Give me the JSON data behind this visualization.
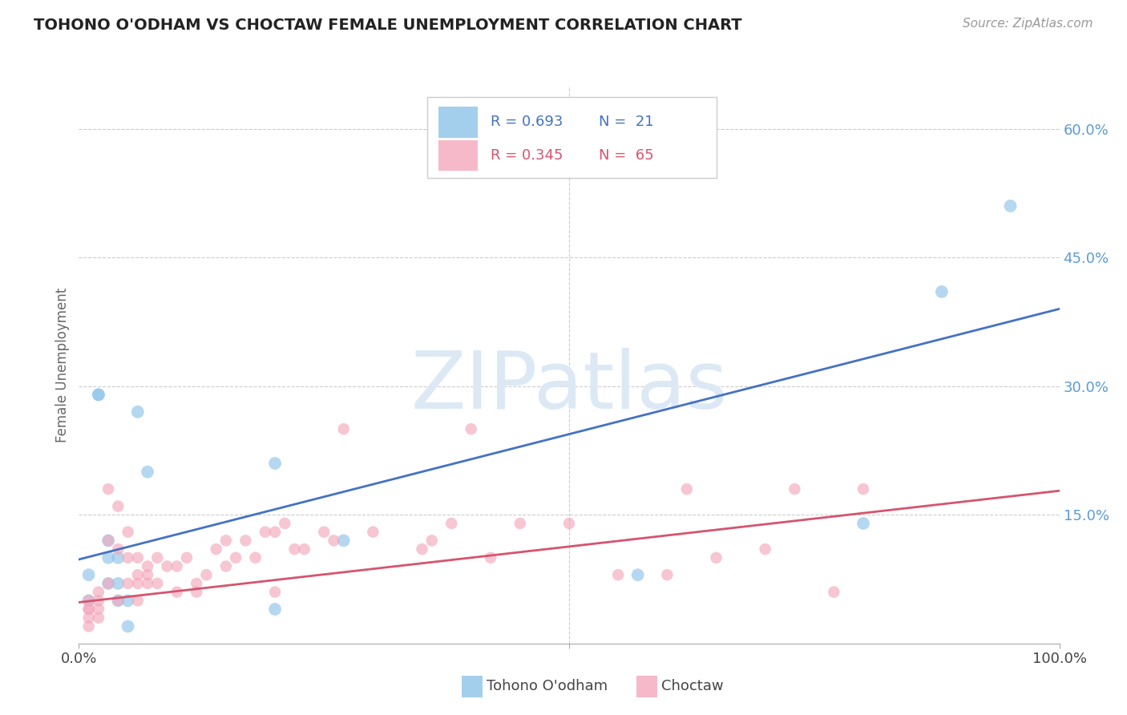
{
  "title": "TOHONO O'ODHAM VS CHOCTAW FEMALE UNEMPLOYMENT CORRELATION CHART",
  "source": "Source: ZipAtlas.com",
  "ylabel": "Female Unemployment",
  "xlim": [
    0,
    1.0
  ],
  "ylim": [
    0,
    0.65
  ],
  "yticks_right": [
    0.0,
    0.15,
    0.3,
    0.45,
    0.6
  ],
  "ytick_right_labels": [
    "",
    "15.0%",
    "30.0%",
    "45.0%",
    "60.0%"
  ],
  "watermark": "ZIPatlas",
  "background_color": "#ffffff",
  "grid_color": "#cccccc",
  "blue_color": "#8ec4e8",
  "pink_color": "#f4a8bc",
  "blue_line_color": "#4472c4",
  "pink_line_color": "#d6546e",
  "blue_label": "Tohono O'odham",
  "pink_label": "Choctaw",
  "blue_R": "R = 0.693",
  "blue_N": "N =  21",
  "pink_R": "R = 0.345",
  "pink_N": "N =  65",
  "blue_points_x": [
    0.01,
    0.01,
    0.02,
    0.02,
    0.03,
    0.03,
    0.03,
    0.04,
    0.04,
    0.04,
    0.05,
    0.05,
    0.06,
    0.07,
    0.2,
    0.2,
    0.27,
    0.57,
    0.8,
    0.88,
    0.95
  ],
  "blue_points_y": [
    0.08,
    0.05,
    0.29,
    0.29,
    0.12,
    0.1,
    0.07,
    0.07,
    0.1,
    0.05,
    0.05,
    0.02,
    0.27,
    0.2,
    0.21,
    0.04,
    0.12,
    0.08,
    0.14,
    0.41,
    0.51
  ],
  "pink_points_x": [
    0.01,
    0.01,
    0.01,
    0.01,
    0.01,
    0.02,
    0.02,
    0.02,
    0.02,
    0.03,
    0.03,
    0.03,
    0.04,
    0.04,
    0.04,
    0.05,
    0.05,
    0.05,
    0.06,
    0.06,
    0.06,
    0.06,
    0.07,
    0.07,
    0.07,
    0.08,
    0.08,
    0.09,
    0.1,
    0.1,
    0.11,
    0.12,
    0.12,
    0.13,
    0.14,
    0.15,
    0.15,
    0.16,
    0.17,
    0.18,
    0.19,
    0.2,
    0.2,
    0.21,
    0.22,
    0.23,
    0.25,
    0.26,
    0.27,
    0.3,
    0.35,
    0.36,
    0.38,
    0.4,
    0.42,
    0.45,
    0.5,
    0.55,
    0.6,
    0.62,
    0.65,
    0.7,
    0.73,
    0.77,
    0.8
  ],
  "pink_points_y": [
    0.05,
    0.04,
    0.04,
    0.03,
    0.02,
    0.06,
    0.05,
    0.04,
    0.03,
    0.18,
    0.12,
    0.07,
    0.16,
    0.11,
    0.05,
    0.13,
    0.1,
    0.07,
    0.1,
    0.08,
    0.07,
    0.05,
    0.09,
    0.08,
    0.07,
    0.1,
    0.07,
    0.09,
    0.09,
    0.06,
    0.1,
    0.07,
    0.06,
    0.08,
    0.11,
    0.12,
    0.09,
    0.1,
    0.12,
    0.1,
    0.13,
    0.13,
    0.06,
    0.14,
    0.11,
    0.11,
    0.13,
    0.12,
    0.25,
    0.13,
    0.11,
    0.12,
    0.14,
    0.25,
    0.1,
    0.14,
    0.14,
    0.08,
    0.08,
    0.18,
    0.1,
    0.11,
    0.18,
    0.06,
    0.18
  ],
  "blue_trend_x": [
    0.0,
    1.0
  ],
  "blue_trend_y": [
    0.098,
    0.39
  ],
  "pink_trend_x": [
    0.0,
    1.0
  ],
  "pink_trend_y": [
    0.048,
    0.178
  ],
  "axis_color": "#aaaaaa",
  "tick_label_color": "#5b9bd5",
  "ylabel_color": "#666666"
}
